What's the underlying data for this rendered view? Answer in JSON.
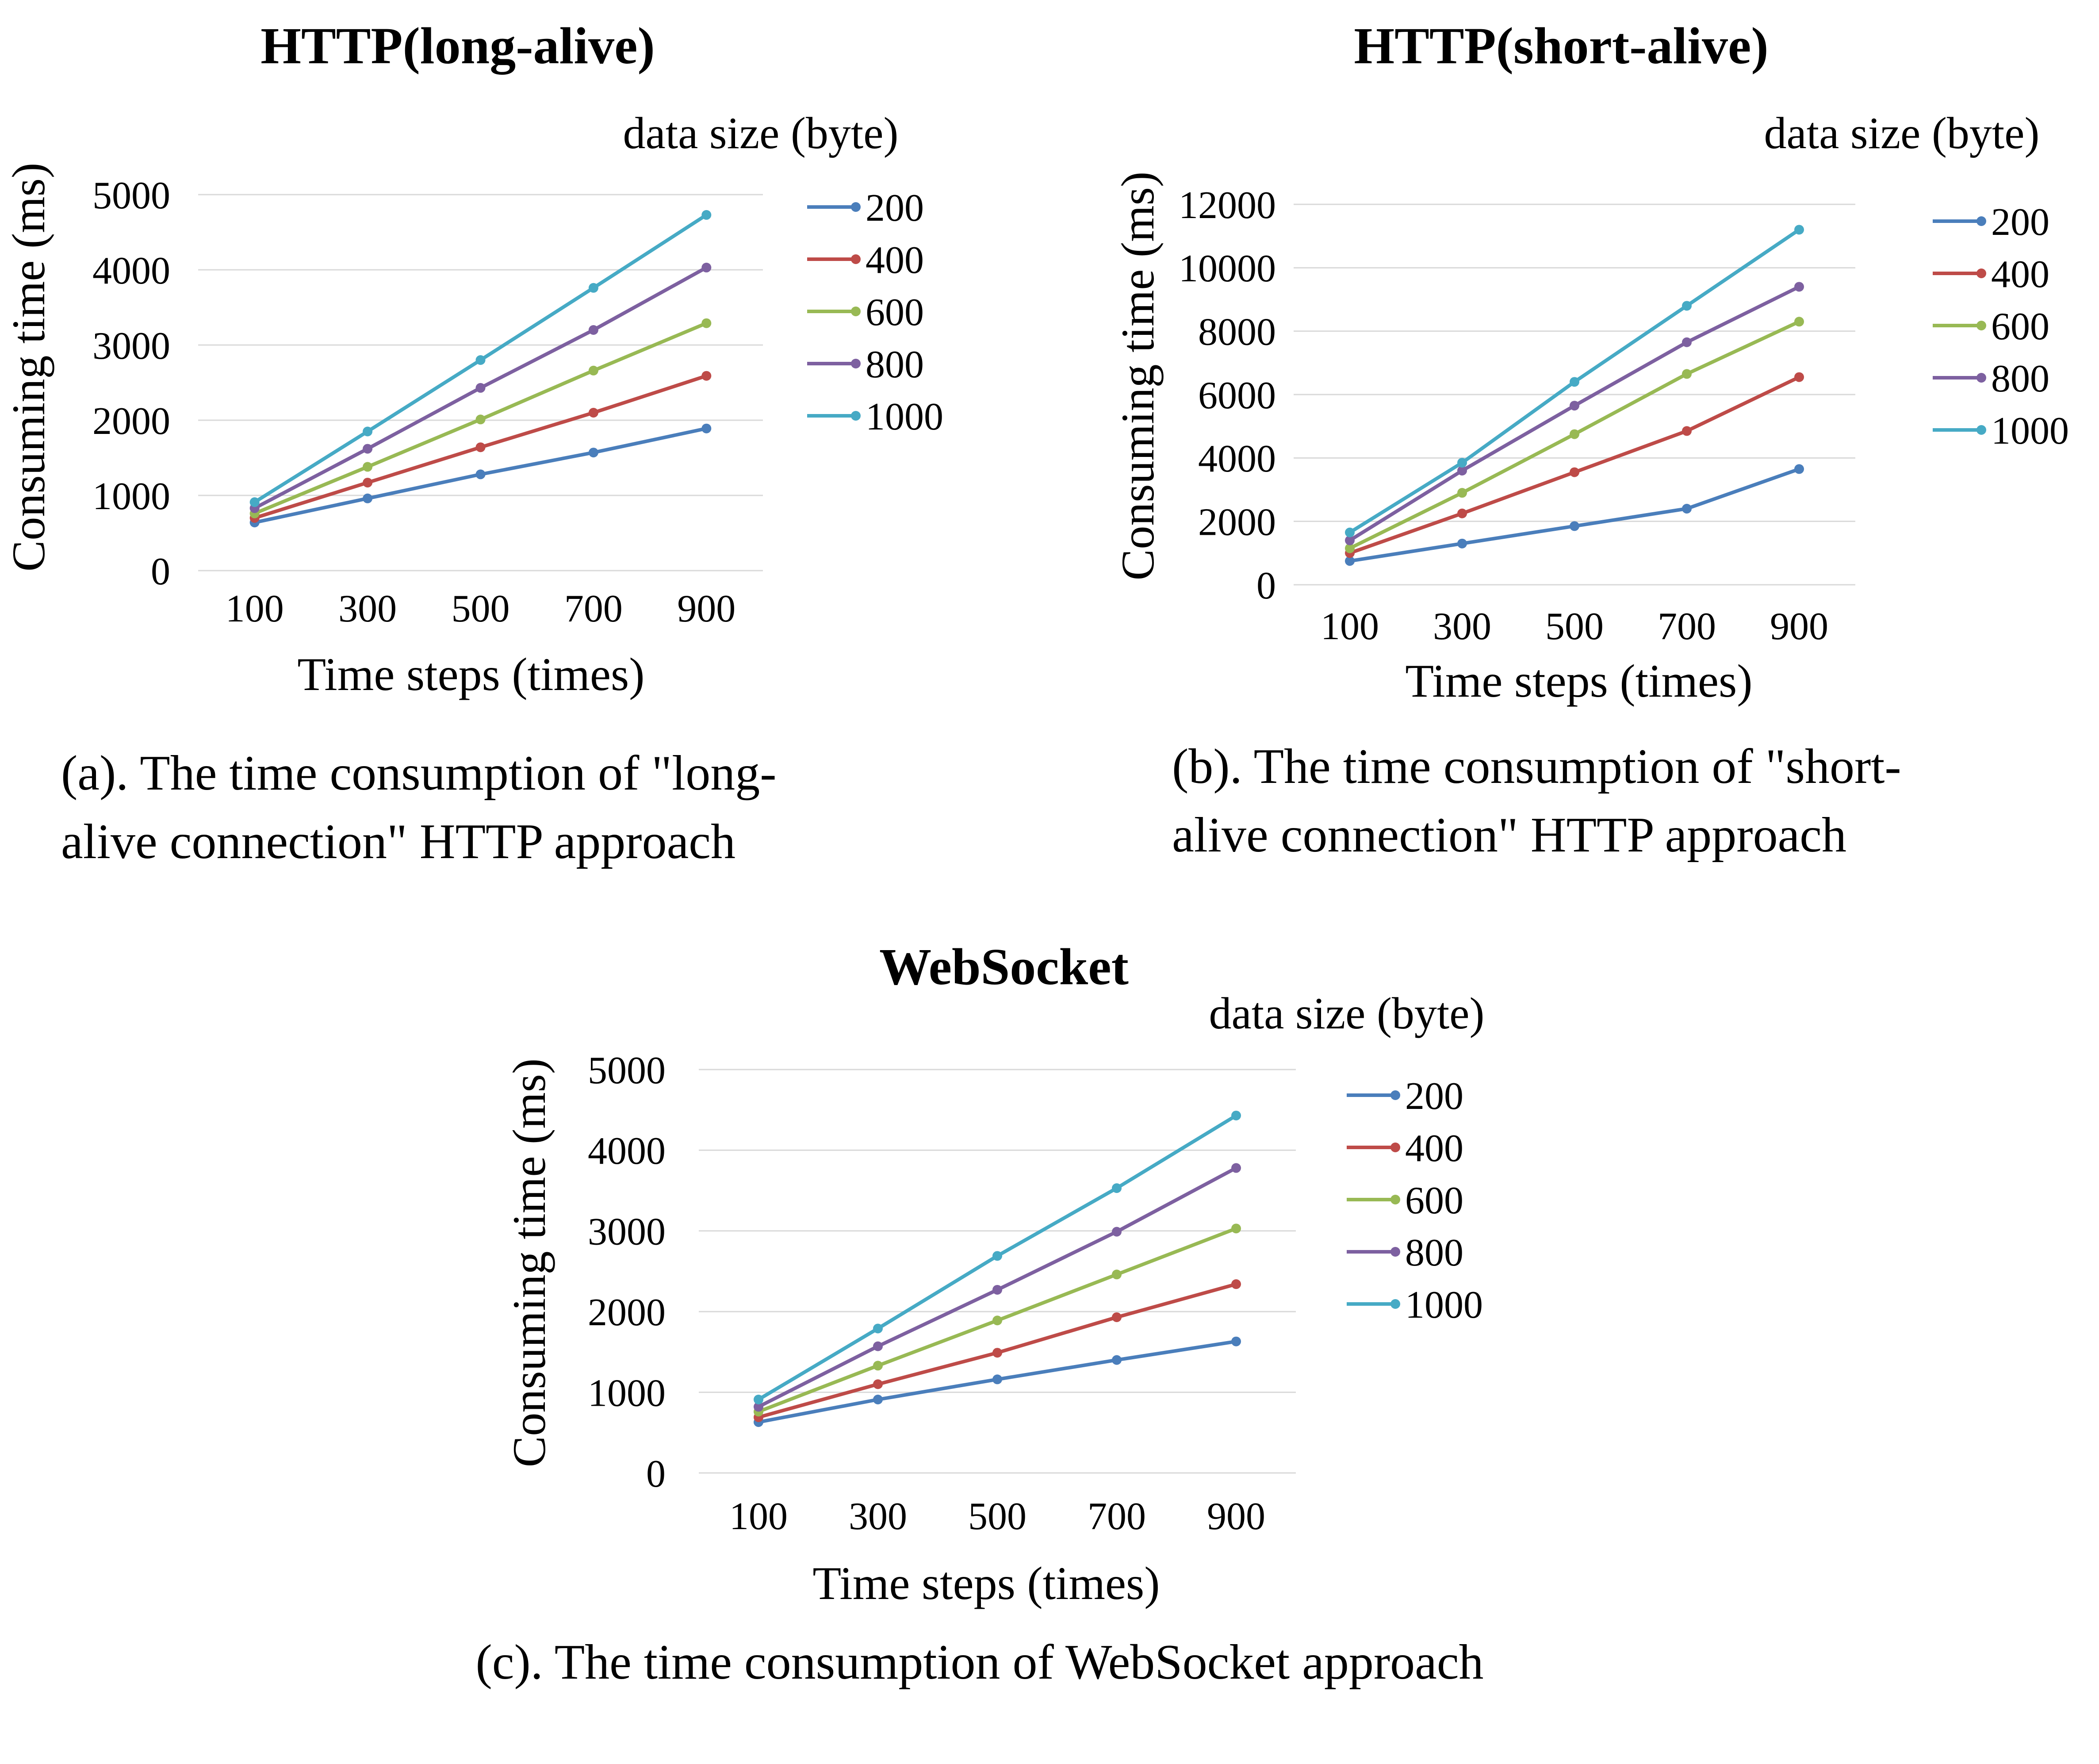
{
  "colors": {
    "s200": "#4a7ebb",
    "s400": "#be4b48",
    "s600": "#98b954",
    "s800": "#7d60a0",
    "s1000": "#46aac5",
    "grid": "#d9d9d9"
  },
  "chart_data": [
    {
      "type": "line",
      "title": "HTTP(long-alive)",
      "legend_title": "data size (byte)",
      "xlabel": "Time steps (times)",
      "ylabel": "Consuming time (ms)",
      "caption": [
        "(a). The time consumption of \"long-",
        "alive connection\" HTTP approach"
      ],
      "x": [
        100,
        300,
        500,
        700,
        900
      ],
      "x_ticks": [
        "100",
        "300",
        "500",
        "700",
        "900"
      ],
      "ylim": [
        0,
        5000
      ],
      "y_ticks": [
        0,
        1000,
        2000,
        3000,
        4000,
        5000
      ],
      "grid": true,
      "legend_position": "right",
      "series": [
        {
          "name": "200",
          "color_key": "s200",
          "values": [
            640,
            960,
            1280,
            1570,
            1890
          ]
        },
        {
          "name": "400",
          "color_key": "s400",
          "values": [
            700,
            1170,
            1640,
            2100,
            2590
          ]
        },
        {
          "name": "600",
          "color_key": "s600",
          "values": [
            760,
            1380,
            2010,
            2660,
            3290
          ]
        },
        {
          "name": "800",
          "color_key": "s800",
          "values": [
            830,
            1620,
            2430,
            3200,
            4030
          ]
        },
        {
          "name": "1000",
          "color_key": "s1000",
          "values": [
            910,
            1850,
            2800,
            3760,
            4730
          ]
        }
      ]
    },
    {
      "type": "line",
      "title": "HTTP(short-alive)",
      "legend_title": "data size (byte)",
      "xlabel": "Time steps (times)",
      "ylabel": "Consuming time (ms)",
      "caption": [
        "(b). The time consumption of \"short-",
        "alive connection\" HTTP approach"
      ],
      "x": [
        100,
        300,
        500,
        700,
        900
      ],
      "x_ticks": [
        "100",
        "300",
        "500",
        "700",
        "900"
      ],
      "ylim": [
        0,
        12000
      ],
      "y_ticks": [
        0,
        2000,
        4000,
        6000,
        8000,
        10000,
        12000
      ],
      "grid": true,
      "legend_position": "right",
      "series": [
        {
          "name": "200",
          "color_key": "s200",
          "values": [
            750,
            1300,
            1850,
            2400,
            3650
          ]
        },
        {
          "name": "400",
          "color_key": "s400",
          "values": [
            1000,
            2250,
            3550,
            4850,
            6550
          ]
        },
        {
          "name": "600",
          "color_key": "s600",
          "values": [
            1150,
            2900,
            4750,
            6650,
            8300
          ]
        },
        {
          "name": "800",
          "color_key": "s800",
          "values": [
            1400,
            3600,
            5650,
            7650,
            9400
          ]
        },
        {
          "name": "1000",
          "color_key": "s1000",
          "values": [
            1650,
            3850,
            6400,
            8800,
            11200
          ]
        }
      ]
    },
    {
      "type": "line",
      "title": "WebSocket",
      "legend_title": "data size (byte)",
      "xlabel": "Time steps (times)",
      "ylabel": "Consuming time (ms)",
      "caption": [
        "(c). The time consumption of WebSocket approach"
      ],
      "x": [
        100,
        300,
        500,
        700,
        900
      ],
      "x_ticks": [
        "100",
        "300",
        "500",
        "700",
        "900"
      ],
      "ylim": [
        0,
        5000
      ],
      "y_ticks": [
        0,
        1000,
        2000,
        3000,
        4000,
        5000
      ],
      "grid": true,
      "legend_position": "right",
      "series": [
        {
          "name": "200",
          "color_key": "s200",
          "values": [
            630,
            910,
            1160,
            1400,
            1630
          ]
        },
        {
          "name": "400",
          "color_key": "s400",
          "values": [
            690,
            1100,
            1490,
            1930,
            2340
          ]
        },
        {
          "name": "600",
          "color_key": "s600",
          "values": [
            760,
            1330,
            1890,
            2460,
            3030
          ]
        },
        {
          "name": "800",
          "color_key": "s800",
          "values": [
            820,
            1570,
            2270,
            2990,
            3780
          ]
        },
        {
          "name": "1000",
          "color_key": "s1000",
          "values": [
            910,
            1790,
            2690,
            3530,
            4430
          ]
        }
      ]
    }
  ]
}
